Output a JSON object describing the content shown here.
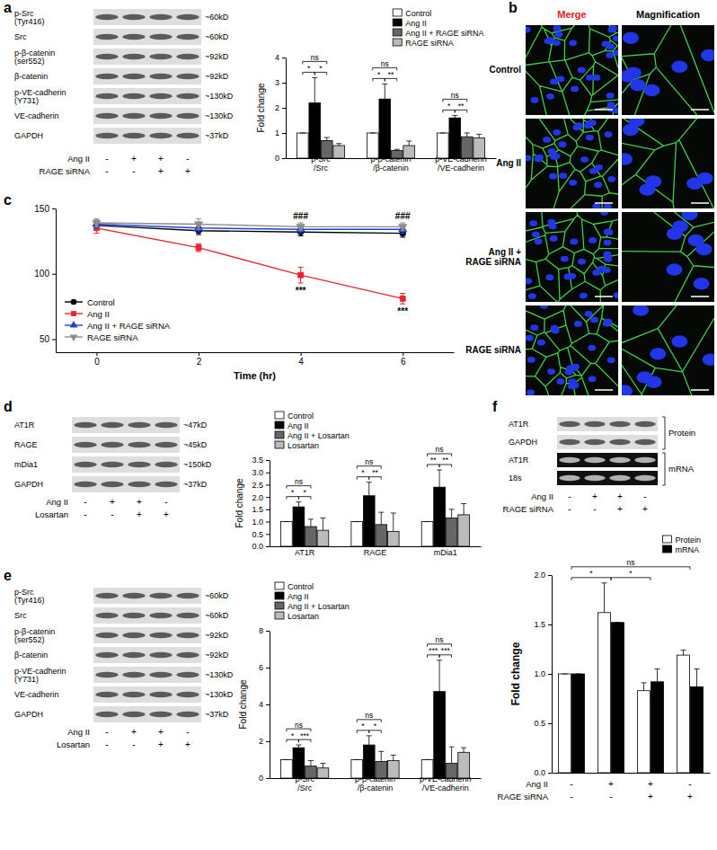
{
  "chart_data": [
    {
      "type": "bar",
      "y_label": "Fold change",
      "categories": [
        "p-Src/Src",
        "p-β-catenin/β-catenin",
        "p-VE-cadherin/VE-cadherin"
      ],
      "series": [
        {
          "name": "Control",
          "color": "#ffffff",
          "values": [
            1,
            1,
            1
          ],
          "errors": [
            0,
            0,
            0
          ]
        },
        {
          "name": "Ang II",
          "color": "#000000",
          "values": [
            2.2,
            2.35,
            1.6
          ],
          "errors": [
            1.0,
            0.6,
            0.1
          ]
        },
        {
          "name": "Ang II + RAGE siRNA",
          "color": "#666666",
          "values": [
            0.7,
            0.3,
            0.85
          ],
          "errors": [
            0.12,
            0.05,
            0.15
          ]
        },
        {
          "name": "RAGE siRNA",
          "color": "#bbbbbb",
          "values": [
            0.5,
            0.5,
            0.8
          ],
          "errors": [
            0.08,
            0.18,
            0.15
          ]
        }
      ],
      "ylim": [
        0,
        4
      ],
      "yticks": [
        0,
        1,
        2,
        3,
        4
      ],
      "legend": "top-right",
      "group_comparisons": [
        [
          {
            "text": "*",
            "pair": [
              0,
              1
            ]
          },
          {
            "text": "*",
            "pair": [
              1,
              2
            ]
          },
          {
            "text": "ns",
            "pair": [
              0,
              2
            ]
          }
        ],
        [
          {
            "text": "*",
            "pair": [
              0,
              1
            ]
          },
          {
            "text": "**",
            "pair": [
              1,
              2
            ]
          },
          {
            "text": "ns",
            "pair": [
              0,
              2
            ]
          }
        ],
        [
          {
            "text": "*",
            "pair": [
              0,
              1
            ]
          },
          {
            "text": "**",
            "pair": [
              1,
              2
            ]
          },
          {
            "text": "ns",
            "pair": [
              0,
              2
            ]
          }
        ]
      ]
    },
    {
      "type": "line",
      "x_label": "Time (hr)",
      "x": [
        0,
        2,
        4,
        6
      ],
      "series": [
        {
          "name": "Control",
          "color": "#000000",
          "marker": "circle",
          "values": [
            137,
            133,
            132,
            131
          ],
          "errors": [
            3,
            3,
            3,
            3
          ]
        },
        {
          "name": "Ang II",
          "color": "#e8262b",
          "marker": "square",
          "values": [
            135,
            120,
            99,
            81
          ],
          "errors": [
            4,
            3,
            6,
            4
          ]
        },
        {
          "name": "Ang II + RAGE siRNA",
          "color": "#1f3fd6",
          "marker": "triangle-up",
          "values": [
            138,
            135,
            134,
            134
          ],
          "errors": [
            3,
            3,
            3,
            3
          ]
        },
        {
          "name": "RAGE siRNA",
          "color": "#8c8c8c",
          "marker": "triangle-down",
          "values": [
            139,
            138,
            136,
            136
          ],
          "errors": [
            3,
            4,
            3,
            3
          ]
        }
      ],
      "xlim": [
        -0.8,
        7
      ],
      "xticks": [
        0,
        2,
        4,
        6
      ],
      "ylim": [
        40,
        150
      ],
      "yticks": [
        50,
        100,
        150
      ],
      "legend": "bottom-left",
      "annotations": [
        {
          "text": "###",
          "x": 4,
          "series": 2
        },
        {
          "text": "###",
          "x": 6,
          "series": 2
        },
        {
          "text": "***",
          "x": 4,
          "series": 1
        },
        {
          "text": "***",
          "x": 6,
          "series": 1
        }
      ]
    },
    {
      "type": "bar",
      "y_label": "Fold change",
      "categories": [
        "AT1R",
        "RAGE",
        "mDia1"
      ],
      "series": [
        {
          "name": "Control",
          "color": "#ffffff",
          "values": [
            1,
            1,
            1
          ],
          "errors": [
            0,
            0,
            0
          ]
        },
        {
          "name": "Ang II",
          "color": "#000000",
          "values": [
            1.6,
            2.05,
            2.4
          ],
          "errors": [
            0.2,
            0.55,
            0.7
          ]
        },
        {
          "name": "Ang II + Losartan",
          "color": "#666666",
          "values": [
            0.8,
            0.88,
            1.15
          ],
          "errors": [
            0.3,
            0.5,
            0.35
          ]
        },
        {
          "name": "Losartan",
          "color": "#bbbbbb",
          "values": [
            0.65,
            0.6,
            1.28
          ],
          "errors": [
            0.5,
            0.75,
            0.45
          ]
        }
      ],
      "ylim": [
        0,
        3.5
      ],
      "yticks": [
        {
          "value": 0,
          "label": "0.0"
        },
        0.5,
        {
          "value": 1,
          "label": "1.0"
        },
        1.5,
        {
          "value": 2,
          "label": "2.0"
        },
        2.5,
        {
          "value": 3,
          "label": "3.0"
        },
        3.5
      ],
      "legend": "top-left",
      "group_comparisons": [
        [
          {
            "text": "*",
            "pair": [
              0,
              1
            ]
          },
          {
            "text": "*",
            "pair": [
              1,
              2
            ]
          },
          {
            "text": "ns",
            "pair": [
              0,
              2
            ]
          }
        ],
        [
          {
            "text": "*",
            "pair": [
              0,
              1
            ]
          },
          {
            "text": "**",
            "pair": [
              1,
              2
            ]
          },
          {
            "text": "ns",
            "pair": [
              0,
              2
            ]
          }
        ],
        [
          {
            "text": "**",
            "pair": [
              0,
              1
            ]
          },
          {
            "text": "**",
            "pair": [
              1,
              2
            ]
          },
          {
            "text": "ns",
            "pair": [
              0,
              2
            ]
          }
        ]
      ]
    },
    {
      "type": "bar",
      "y_label": "Fold change",
      "categories": [
        "p-Src/Src",
        "p-β-catenin/β-catenin",
        "p-VE-cadherin/VE-cadherin"
      ],
      "series": [
        {
          "name": "Control",
          "color": "#ffffff",
          "values": [
            1,
            1,
            1
          ],
          "errors": [
            0,
            0,
            0
          ]
        },
        {
          "name": "Ang II",
          "color": "#000000",
          "values": [
            1.65,
            1.8,
            4.7
          ],
          "errors": [
            0.15,
            0.5,
            1.7
          ]
        },
        {
          "name": "Ang II + Losartan",
          "color": "#666666",
          "values": [
            0.65,
            0.9,
            0.8
          ],
          "errors": [
            0.3,
            0.55,
            0.9
          ]
        },
        {
          "name": "Losartan",
          "color": "#bbbbbb",
          "values": [
            0.55,
            0.95,
            1.4
          ],
          "errors": [
            0.25,
            0.3,
            0.25
          ]
        }
      ],
      "ylim": [
        0,
        8
      ],
      "yticks": [
        0,
        2,
        4,
        6,
        8
      ],
      "legend": "top-left",
      "group_comparisons": [
        [
          {
            "text": "*",
            "pair": [
              0,
              1
            ]
          },
          {
            "text": "***",
            "pair": [
              1,
              2
            ]
          },
          {
            "text": "ns",
            "pair": [
              0,
              2
            ]
          }
        ],
        [
          {
            "text": "*",
            "pair": [
              0,
              1
            ]
          },
          {
            "text": "*",
            "pair": [
              1,
              2
            ]
          },
          {
            "text": "ns",
            "pair": [
              0,
              2
            ]
          }
        ],
        [
          {
            "text": "***",
            "pair": [
              0,
              1
            ]
          },
          {
            "text": "***",
            "pair": [
              1,
              2
            ]
          },
          {
            "text": "ns",
            "pair": [
              0,
              2
            ]
          }
        ]
      ]
    },
    {
      "type": "bar",
      "y_label": "Fold change",
      "categories": [
        null,
        null,
        null,
        null
      ],
      "series": [
        {
          "name": "Protein",
          "color": "#ffffff",
          "values": [
            1,
            1.62,
            0.83,
            1.19
          ],
          "errors": [
            0,
            0.3,
            0.08,
            0.05
          ]
        },
        {
          "name": "mRNA",
          "color": "#000000",
          "values": [
            1,
            1.52,
            0.92,
            0.87
          ],
          "errors": [
            0,
            0,
            0.13,
            0.18
          ]
        }
      ],
      "ylim": [
        0,
        2
      ],
      "yticks": [
        {
          "value": 0,
          "label": "0.0"
        },
        0.5,
        {
          "value": 1,
          "label": "1.0"
        },
        1.5,
        {
          "value": 2,
          "label": "2.0"
        }
      ],
      "legend": "top-right",
      "conditions": [
        {
          "label": "Ang II",
          "signs": [
            "-",
            "+",
            "+",
            "-"
          ]
        },
        {
          "label": "RAGE siRNA",
          "signs": [
            "-",
            "-",
            "+",
            "+"
          ]
        }
      ],
      "comparisons": [
        {
          "text": "*",
          "pair": [
            0,
            1
          ]
        },
        {
          "text": "*",
          "pair": [
            1,
            2
          ]
        },
        {
          "text": "ns",
          "pair": [
            0,
            3
          ]
        }
      ]
    }
  ],
  "figure": {
    "panel_labels": [
      "a",
      "b",
      "c",
      "d",
      "e",
      "f"
    ],
    "blots": [
      {
        "rows": [
          {
            "label": "p-Src (Tyr416)",
            "size": "~60kD"
          },
          {
            "label": "Src",
            "size": "~60kD"
          },
          {
            "label": "p-β-catenin (ser552)",
            "size": "~92kD"
          },
          {
            "label": "β-catenin",
            "size": "~92kD"
          },
          {
            "label": "p-VE-cadherin (Y731)",
            "size": "~130kD"
          },
          {
            "label": "VE-cadherin",
            "size": "~130kD"
          },
          {
            "label": "GAPDH",
            "size": "~37kD"
          }
        ],
        "treatments": [
          {
            "label": "Ang II",
            "signs": [
              "-",
              "+",
              "+",
              "-"
            ]
          },
          {
            "label": "RAGE siRNA",
            "signs": [
              "-",
              "-",
              "+",
              "+"
            ]
          }
        ]
      },
      {
        "rows": [
          {
            "label": "AT1R",
            "size": "~47kD"
          },
          {
            "label": "RAGE",
            "size": "~45kD"
          },
          {
            "label": "mDia1",
            "size": "~150kD"
          },
          {
            "label": "GAPDH",
            "size": "~37kD"
          }
        ],
        "treatments": [
          {
            "label": "Ang II",
            "signs": [
              "-",
              "+",
              "+",
              "-"
            ]
          },
          {
            "label": "Losartan",
            "signs": [
              "-",
              "-",
              "+",
              "+"
            ]
          }
        ]
      },
      {
        "rows": [
          {
            "label": "p-Src (Tyr416)",
            "size": "~60kD"
          },
          {
            "label": "Src",
            "size": "~60kD"
          },
          {
            "label": "p-β-catenin (ser552)",
            "size": "~92kD"
          },
          {
            "label": "β-catenin",
            "size": "~92kD"
          },
          {
            "label": "p-VE-cadherin (Y731)",
            "size": "~130kD"
          },
          {
            "label": "VE-cadherin",
            "size": "~130kD"
          },
          {
            "label": "GAPDH",
            "size": "~37kD"
          }
        ],
        "treatments": [
          {
            "label": "Ang II",
            "signs": [
              "-",
              "+",
              "+",
              "-"
            ]
          },
          {
            "label": "Losartan",
            "signs": [
              "-",
              "-",
              "+",
              "+"
            ]
          }
        ]
      },
      {
        "rows": [
          {
            "label": "AT1R"
          },
          {
            "label": "GAPDH"
          },
          {
            "label": "AT1R"
          },
          {
            "label": "18s"
          }
        ],
        "groups": [
          {
            "label": "Protein",
            "rows": [
              0,
              1
            ]
          },
          {
            "label": "mRNA",
            "rows": [
              2,
              3
            ]
          }
        ],
        "treatments": [
          {
            "label": "Ang II",
            "signs": [
              "-",
              "+",
              "+",
              "-"
            ]
          },
          {
            "label": "RAGE siRNA",
            "signs": [
              "-",
              "-",
              "+",
              "+"
            ]
          }
        ]
      }
    ],
    "images": {
      "headers": [
        "Merge",
        "Magnification"
      ],
      "rows": [
        "Control",
        "Ang II",
        "Ang II + RAGE siRNA",
        "RAGE siRNA"
      ]
    }
  }
}
